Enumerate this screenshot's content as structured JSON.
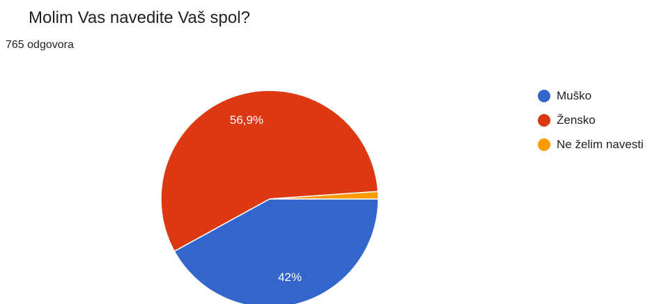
{
  "title": "Molim Vas navedite Vaš spol?",
  "response_count": "765 odgovora",
  "chart_data": {
    "type": "pie",
    "title": "Molim Vas navedite Vaš spol?",
    "categories": [
      "Muško",
      "Žensko",
      "Ne želim navesti"
    ],
    "values": [
      42,
      56.9,
      1.1
    ],
    "labels": [
      "42%",
      "56,9%",
      ""
    ],
    "colors": [
      "#3366cc",
      "#dc3912",
      "#ff9900"
    ],
    "legend_position": "right"
  }
}
